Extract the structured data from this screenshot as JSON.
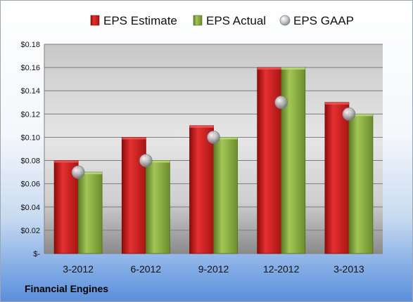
{
  "company": "Financial Engines",
  "chart_data": {
    "type": "bar",
    "categories": [
      "3-2012",
      "6-2012",
      "9-2012",
      "12-2012",
      "3-2013"
    ],
    "series": [
      {
        "name": "EPS Estimate",
        "values": [
          0.08,
          0.1,
          0.11,
          0.16,
          0.13
        ],
        "color": "#d11f1f",
        "kind": "bar"
      },
      {
        "name": "EPS Actual",
        "values": [
          0.07,
          0.08,
          0.1,
          0.16,
          0.12
        ],
        "color": "#8aac3c",
        "kind": "bar"
      },
      {
        "name": "EPS GAAP",
        "values": [
          0.07,
          0.08,
          0.1,
          0.13,
          0.12
        ],
        "color": "#b8bcc2",
        "kind": "marker"
      }
    ],
    "ylim": [
      0,
      0.18
    ],
    "yticks": [
      {
        "value": 0,
        "label": "$-"
      },
      {
        "value": 0.02,
        "label": "$0.02"
      },
      {
        "value": 0.04,
        "label": "$0.04"
      },
      {
        "value": 0.06,
        "label": "$0.06"
      },
      {
        "value": 0.08,
        "label": "$0.08"
      },
      {
        "value": 0.1,
        "label": "$0.10"
      },
      {
        "value": 0.12,
        "label": "$0.12"
      },
      {
        "value": 0.14,
        "label": "$0.14"
      },
      {
        "value": 0.16,
        "label": "$0.16"
      },
      {
        "value": 0.18,
        "label": "$0.18"
      }
    ],
    "grid": true,
    "legend": "top"
  }
}
